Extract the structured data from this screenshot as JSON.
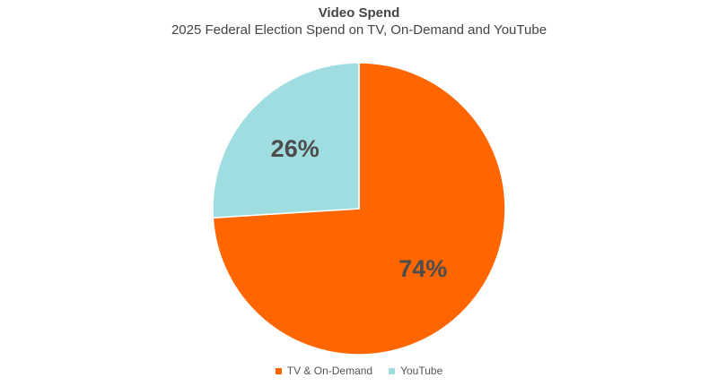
{
  "chart_data": {
    "type": "pie",
    "title": "Video Spend",
    "subtitle": "2025 Federal Election Spend on TV, On-Demand and YouTube",
    "slices": [
      {
        "label": "TV & On-Demand",
        "value": 74,
        "display": "74%",
        "color": "#ff6600"
      },
      {
        "label": "YouTube",
        "value": 26,
        "display": "26%",
        "color": "#9fdde0"
      }
    ],
    "legend_position": "bottom"
  }
}
